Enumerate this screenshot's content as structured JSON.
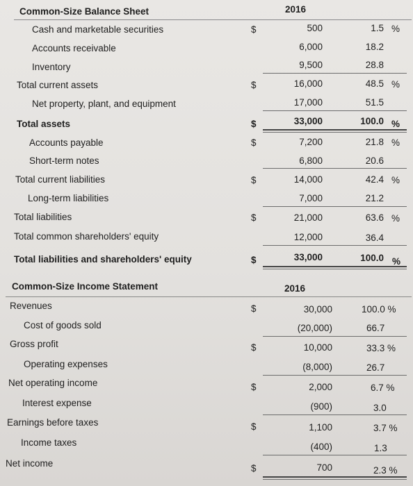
{
  "balance_sheet": {
    "title": "Common-Size Balance Sheet",
    "year": "2016",
    "rows": [
      {
        "label": "Cash and marketable securities",
        "cur": "$",
        "amount": "500",
        "pct": "1.5",
        "pct_sym": "%"
      },
      {
        "label": "Accounts receivable",
        "cur": "",
        "amount": "6,000",
        "pct": "18.2",
        "pct_sym": ""
      },
      {
        "label": "Inventory",
        "cur": "",
        "amount": "9,500",
        "pct": "28.8",
        "pct_sym": ""
      },
      {
        "label": "Total current assets",
        "cur": "$",
        "amount": "16,000",
        "pct": "48.5",
        "pct_sym": "%"
      },
      {
        "label": "Net property, plant, and equipment",
        "cur": "",
        "amount": "17,000",
        "pct": "51.5",
        "pct_sym": ""
      },
      {
        "label": "Total assets",
        "cur": "$",
        "amount": "33,000",
        "pct": "100.0",
        "pct_sym": "%"
      },
      {
        "label": "Accounts payable",
        "cur": "$",
        "amount": "7,200",
        "pct": "21.8",
        "pct_sym": "%"
      },
      {
        "label": "Short-term notes",
        "cur": "",
        "amount": "6,800",
        "pct": "20.6",
        "pct_sym": ""
      },
      {
        "label": "Total current liabilities",
        "cur": "$",
        "amount": "14,000",
        "pct": "42.4",
        "pct_sym": "%"
      },
      {
        "label": "Long-term liabilities",
        "cur": "",
        "amount": "7,000",
        "pct": "21.2",
        "pct_sym": ""
      },
      {
        "label": "Total liabilities",
        "cur": "$",
        "amount": "21,000",
        "pct": "63.6",
        "pct_sym": "%"
      },
      {
        "label": "Total common shareholders' equity",
        "cur": "",
        "amount": "12,000",
        "pct": "36.4",
        "pct_sym": ""
      },
      {
        "label": "Total liabilities and shareholders' equity",
        "cur": "$",
        "amount": "33,000",
        "pct": "100.0",
        "pct_sym": "%"
      }
    ]
  },
  "income_statement": {
    "title": "Common-Size Income Statement",
    "year": "2016",
    "rows": [
      {
        "label": "Revenues",
        "cur": "$",
        "amount": "30,000",
        "pct": "100.0 %"
      },
      {
        "label": "Cost of goods sold",
        "cur": "",
        "amount": "(20,000)",
        "pct": "66.7"
      },
      {
        "label": "Gross profit",
        "cur": "$",
        "amount": "10,000",
        "pct": "33.3 %"
      },
      {
        "label": "Operating expenses",
        "cur": "",
        "amount": "(8,000)",
        "pct": "26.7"
      },
      {
        "label": "Net operating income",
        "cur": "$",
        "amount": "2,000",
        "pct": "6.7 %"
      },
      {
        "label": "Interest expense",
        "cur": "",
        "amount": "(900)",
        "pct": "3.0"
      },
      {
        "label": "Earnings before taxes",
        "cur": "$",
        "amount": "1,100",
        "pct": "3.7 %"
      },
      {
        "label": "Income taxes",
        "cur": "",
        "amount": "(400)",
        "pct": "1.3"
      },
      {
        "label": "Net income",
        "cur": "$",
        "amount": "700",
        "pct": "2.3 %"
      }
    ]
  }
}
